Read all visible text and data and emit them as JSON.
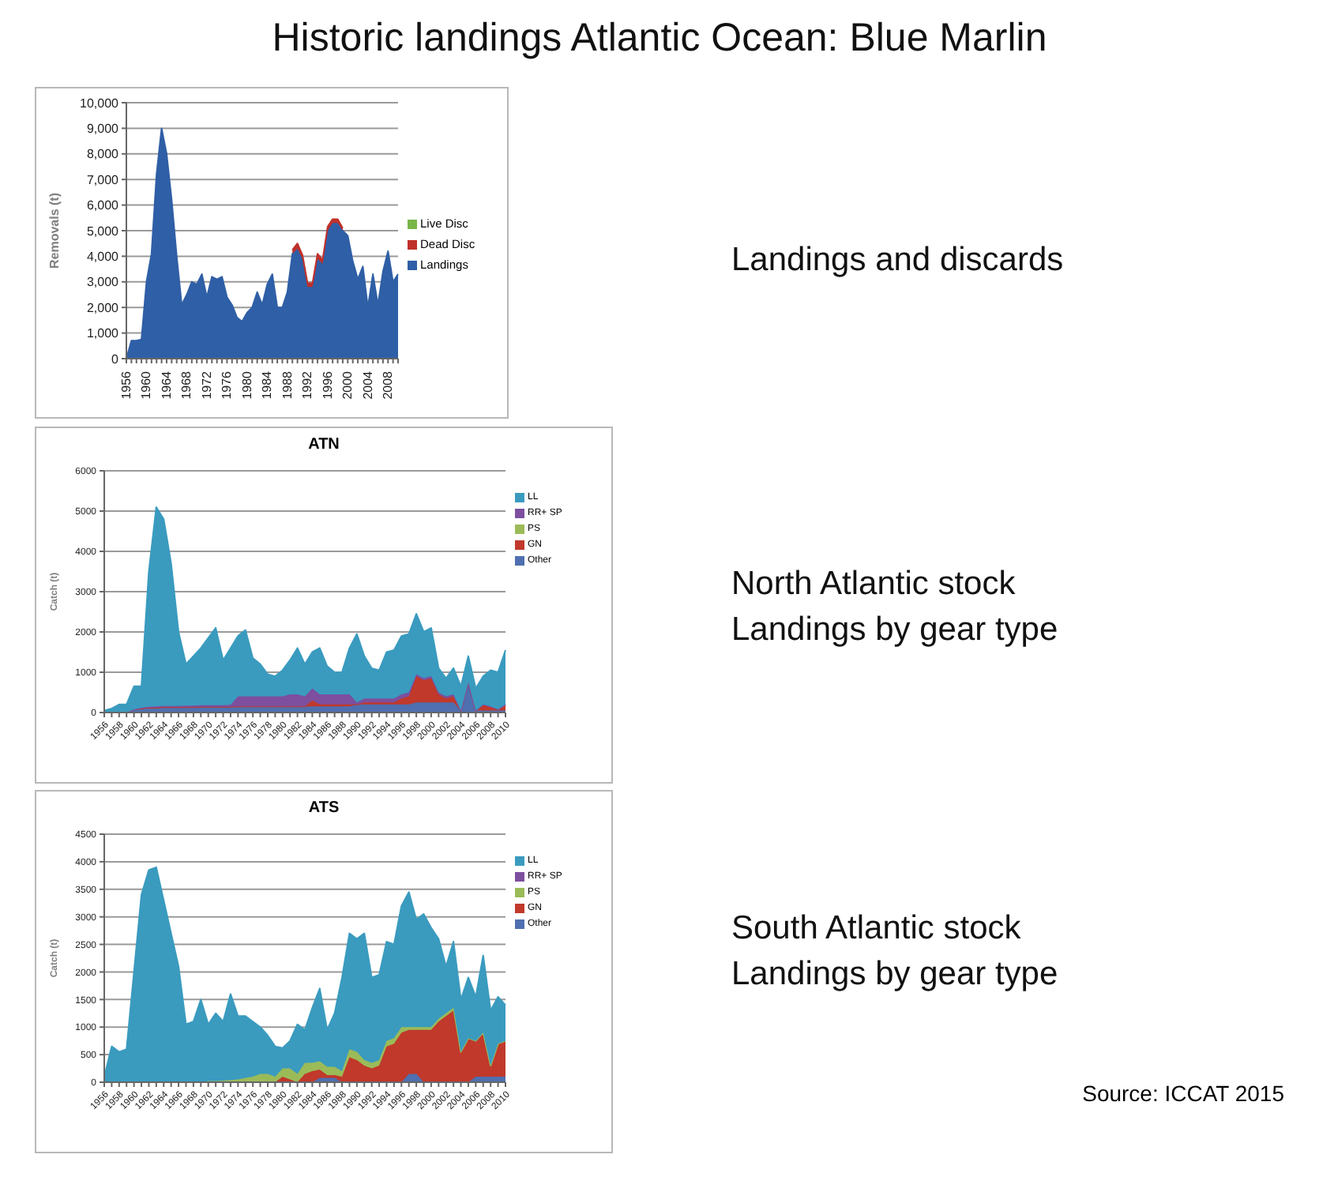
{
  "chart_data": [
    {
      "type": "area",
      "title": "Historic landings Atlantic Ocean: Blue Marlin",
      "annotations": [
        "Landings and discards"
      ],
      "ylabel": "Removals (t)",
      "stacked": true,
      "grid": "y",
      "legend": "right",
      "marker": "none",
      "categories": [
        "1956",
        null,
        null,
        null,
        "1960",
        null,
        null,
        null,
        "1964",
        null,
        null,
        null,
        "1968",
        null,
        null,
        null,
        "1972",
        null,
        null,
        null,
        "1976",
        null,
        null,
        null,
        "1980",
        null,
        null,
        null,
        "1984",
        null,
        null,
        null,
        "1988",
        null,
        null,
        null,
        "1992",
        null,
        null,
        null,
        "1996",
        null,
        null,
        null,
        "2000",
        null,
        null,
        null,
        "2004",
        null,
        null,
        null,
        "2008",
        null,
        null
      ],
      "ylim": [
        0,
        10000
      ],
      "yticks": [
        0,
        {
          "value": 1000,
          "label": "1,000"
        },
        {
          "value": 2000,
          "label": "2,000"
        },
        {
          "value": 3000,
          "label": "3,000"
        },
        {
          "value": 4000,
          "label": "4,000"
        },
        {
          "value": 5000,
          "label": "5,000"
        },
        {
          "value": 6000,
          "label": "6,000"
        },
        {
          "value": 7000,
          "label": "7,000"
        },
        {
          "value": 8000,
          "label": "8,000"
        },
        {
          "value": 9000,
          "label": "9,000"
        },
        {
          "value": 10000,
          "label": "10,000"
        }
      ],
      "series": [
        {
          "name": "Landings",
          "color": "#2f5fa6",
          "values": [
            0,
            700,
            700,
            750,
            3000,
            4100,
            7200,
            9000,
            8000,
            6200,
            4000,
            2100,
            2500,
            3000,
            2900,
            3300,
            2400,
            3200,
            3100,
            3200,
            2400,
            2100,
            1600,
            1450,
            1800,
            2000,
            2600,
            2100,
            2900,
            3300,
            2000,
            2000,
            2600,
            4100,
            4300,
            3900,
            2800,
            2800,
            3900,
            3700,
            5000,
            5300,
            5300,
            5000,
            4800,
            3800,
            3100,
            3600,
            2000,
            3300,
            2100,
            3400,
            4200,
            3000,
            3300
          ]
        },
        {
          "name": "Dead Disc",
          "color": "#c0302b",
          "values": [
            null,
            null,
            null,
            null,
            null,
            null,
            null,
            null,
            null,
            null,
            null,
            null,
            null,
            null,
            null,
            null,
            null,
            null,
            null,
            null,
            null,
            null,
            null,
            null,
            null,
            null,
            null,
            null,
            null,
            null,
            null,
            null,
            null,
            150,
            200,
            150,
            150,
            150,
            200,
            150,
            150,
            150,
            150,
            100,
            null,
            null,
            null,
            null,
            null,
            null,
            null,
            null,
            null,
            null,
            null
          ]
        },
        {
          "name": "Live Disc",
          "color": "#7ab648",
          "values": [
            null,
            null,
            null,
            null,
            null,
            null,
            null,
            null,
            null,
            null,
            null,
            null,
            null,
            null,
            null,
            null,
            null,
            null,
            null,
            null,
            null,
            null,
            null,
            null,
            null,
            null,
            null,
            null,
            null,
            null,
            null,
            null,
            null,
            null,
            null,
            null,
            null,
            null,
            null,
            null,
            null,
            null,
            null,
            null,
            null,
            null,
            null,
            null,
            null,
            null,
            null,
            null,
            null,
            null,
            null
          ]
        }
      ]
    },
    {
      "type": "area",
      "title": "ATN",
      "annotations": [
        "North Atlantic stock\nLandings by gear type"
      ],
      "ylabel": "Catch (t)",
      "stacked": true,
      "grid": "y",
      "legend": "right",
      "marker": "none",
      "categories": [
        "1956",
        null,
        "1958",
        null,
        "1960",
        null,
        "1962",
        null,
        "1964",
        null,
        "1966",
        null,
        "1968",
        null,
        "1970",
        null,
        "1972",
        null,
        "1974",
        null,
        "1976",
        null,
        "1978",
        null,
        "1980",
        null,
        "1982",
        null,
        "1984",
        null,
        "1986",
        null,
        "1988",
        null,
        "1990",
        null,
        "1992",
        null,
        "1994",
        null,
        "1996",
        null,
        "1998",
        null,
        "2000",
        null,
        "2002",
        null,
        "2004",
        null,
        "2006",
        null,
        "2008",
        null,
        "2010"
      ],
      "ylim": [
        0,
        6000
      ],
      "yticks": [
        0,
        1000,
        2000,
        3000,
        4000,
        5000,
        6000
      ],
      "series": [
        {
          "name": "Other",
          "color": "#4f6fb0",
          "values": [
            0,
            0,
            0,
            0,
            80,
            100,
            120,
            120,
            130,
            130,
            130,
            130,
            130,
            140,
            140,
            140,
            140,
            140,
            150,
            150,
            150,
            150,
            150,
            150,
            150,
            150,
            150,
            150,
            150,
            150,
            150,
            150,
            150,
            150,
            200,
            200,
            200,
            200,
            200,
            200,
            200,
            200,
            250,
            250,
            250,
            250,
            250,
            250,
            50,
            750,
            50,
            50,
            50,
            50,
            50
          ]
        },
        {
          "name": "GN",
          "color": "#c0392b",
          "values": [
            0,
            0,
            0,
            0,
            0,
            0,
            0,
            0,
            0,
            0,
            0,
            0,
            0,
            0,
            0,
            0,
            0,
            0,
            0,
            0,
            0,
            0,
            0,
            0,
            0,
            0,
            0,
            0,
            150,
            50,
            50,
            50,
            50,
            50,
            0,
            50,
            50,
            50,
            50,
            50,
            150,
            200,
            650,
            550,
            600,
            200,
            100,
            150,
            0,
            0,
            0,
            150,
            100,
            30,
            150
          ]
        },
        {
          "name": "PS",
          "color": "#9bbb59",
          "values": [
            null,
            null,
            null,
            null,
            null,
            null,
            null,
            null,
            null,
            null,
            null,
            null,
            null,
            null,
            null,
            null,
            null,
            null,
            null,
            null,
            null,
            null,
            null,
            null,
            null,
            null,
            null,
            null,
            null,
            null,
            null,
            null,
            null,
            null,
            null,
            null,
            null,
            null,
            null,
            null,
            null,
            null,
            null,
            null,
            null,
            null,
            null,
            null,
            null,
            null,
            null,
            null,
            null,
            null,
            null
          ]
        },
        {
          "name": "RR+ SP",
          "color": "#7d4f9e",
          "values": [
            0,
            0,
            0,
            0,
            0,
            20,
            20,
            30,
            30,
            30,
            30,
            40,
            40,
            40,
            40,
            40,
            40,
            50,
            250,
            250,
            250,
            250,
            250,
            250,
            250,
            300,
            300,
            250,
            300,
            250,
            250,
            250,
            250,
            250,
            50,
            100,
            100,
            100,
            100,
            100,
            100,
            100,
            50,
            50,
            50,
            50,
            50,
            50,
            0,
            0,
            0,
            0,
            0,
            0,
            0
          ]
        },
        {
          "name": "LL",
          "color": "#3a9bbf",
          "values": [
            50,
            100,
            200,
            200,
            570,
            530,
            3360,
            4950,
            4640,
            3540,
            1840,
            1030,
            1230,
            1420,
            1670,
            1920,
            1120,
            1410,
            1500,
            1650,
            950,
            800,
            550,
            500,
            650,
            850,
            1150,
            800,
            900,
            1150,
            700,
            550,
            550,
            1150,
            1700,
            1050,
            750,
            700,
            1150,
            1200,
            1450,
            1450,
            1500,
            1150,
            1200,
            600,
            450,
            650,
            600,
            650,
            550,
            700,
            900,
            920,
            1350
          ]
        }
      ]
    },
    {
      "type": "area",
      "title": "ATS",
      "ylabel": "Catch (t)",
      "stacked": true,
      "grid": "y",
      "legend": "right",
      "marker": "none",
      "annotations": [
        "South Atlantic stock\nLandings by gear type",
        "Source: ICCAT 2015"
      ],
      "categories": [
        "1956",
        null,
        "1958",
        null,
        "1960",
        null,
        "1962",
        null,
        "1964",
        null,
        "1966",
        null,
        "1968",
        null,
        "1970",
        null,
        "1972",
        null,
        "1974",
        null,
        "1976",
        null,
        "1978",
        null,
        "1980",
        null,
        "1982",
        null,
        "1984",
        null,
        "1986",
        null,
        "1988",
        null,
        "1990",
        null,
        "1992",
        null,
        "1994",
        null,
        "1996",
        null,
        "1998",
        null,
        "2000",
        null,
        "2002",
        null,
        "2004",
        null,
        "2006",
        null,
        "2008",
        null,
        "2010"
      ],
      "ylim": [
        0,
        4500
      ],
      "yticks": [
        0,
        500,
        1000,
        1500,
        2000,
        2500,
        3000,
        3500,
        4000,
        4500
      ],
      "series": [
        {
          "name": "Other",
          "color": "#4f6fb0",
          "values": [
            0,
            0,
            0,
            0,
            0,
            0,
            0,
            0,
            0,
            0,
            0,
            0,
            0,
            0,
            0,
            0,
            0,
            0,
            0,
            0,
            0,
            0,
            0,
            0,
            0,
            0,
            0,
            0,
            0,
            80,
            80,
            80,
            0,
            0,
            0,
            0,
            0,
            0,
            0,
            0,
            0,
            150,
            150,
            0,
            0,
            0,
            0,
            0,
            0,
            0,
            100,
            100,
            100,
            100,
            100
          ]
        },
        {
          "name": "GN",
          "color": "#c0392b",
          "values": [
            0,
            0,
            0,
            0,
            0,
            0,
            0,
            0,
            0,
            0,
            0,
            0,
            0,
            0,
            0,
            0,
            0,
            0,
            0,
            0,
            0,
            0,
            0,
            0,
            100,
            50,
            0,
            150,
            200,
            150,
            50,
            50,
            100,
            450,
            400,
            300,
            250,
            300,
            650,
            700,
            900,
            800,
            800,
            950,
            950,
            1100,
            1200,
            1300,
            550,
            800,
            650,
            800,
            200,
            600,
            650
          ]
        },
        {
          "name": "PS",
          "color": "#9bbb59",
          "values": [
            0,
            0,
            0,
            0,
            0,
            0,
            0,
            0,
            0,
            0,
            0,
            0,
            0,
            0,
            20,
            20,
            30,
            40,
            50,
            80,
            100,
            150,
            150,
            100,
            150,
            200,
            150,
            200,
            150,
            150,
            150,
            150,
            100,
            150,
            150,
            100,
            100,
            100,
            100,
            100,
            100,
            50,
            50,
            50,
            50,
            50,
            50,
            50,
            0,
            0,
            0,
            0,
            0,
            0,
            0
          ]
        },
        {
          "name": "RR+ SP",
          "color": "#7d4f9e",
          "values": [
            null,
            null,
            null,
            null,
            null,
            null,
            null,
            null,
            null,
            null,
            null,
            null,
            null,
            null,
            null,
            null,
            null,
            null,
            null,
            null,
            null,
            null,
            null,
            null,
            null,
            null,
            null,
            null,
            null,
            null,
            null,
            null,
            null,
            null,
            null,
            null,
            null,
            null,
            null,
            null,
            null,
            null,
            null,
            null,
            null,
            null,
            null,
            null,
            null,
            null,
            null,
            null,
            null,
            null,
            null
          ]
        },
        {
          "name": "LL",
          "color": "#3a9bbf",
          "values": [
            100,
            650,
            550,
            600,
            2000,
            3400,
            3850,
            3900,
            3300,
            2700,
            2100,
            1050,
            1100,
            1500,
            1030,
            1230,
            1070,
            1560,
            1150,
            1120,
            1000,
            850,
            700,
            550,
            370,
            500,
            900,
            600,
            1000,
            1320,
            670,
            970,
            1700,
            2100,
            2050,
            2300,
            1550,
            1550,
            1800,
            1700,
            2200,
            2450,
            1950,
            2050,
            1800,
            1450,
            850,
            1200,
            950,
            1100,
            800,
            1400,
            1000,
            850,
            650
          ]
        }
      ]
    }
  ]
}
